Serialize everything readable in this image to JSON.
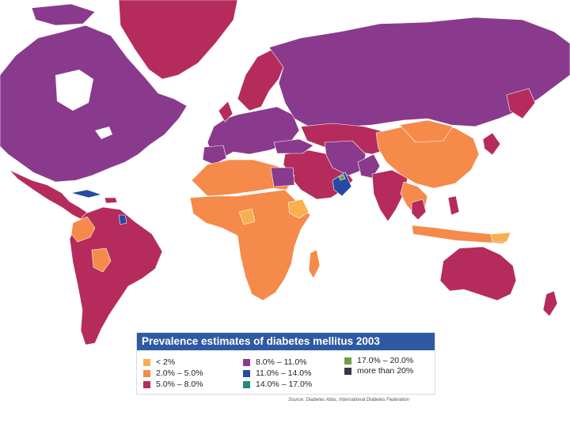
{
  "colors": {
    "lt2": "#f7b04d",
    "c2_5": "#f58a4b",
    "c5_8": "#b52c5c",
    "c8_11": "#8a3a8c",
    "c11_14": "#254aa4",
    "c14_17": "#218b7f",
    "c17_20": "#6f9e44",
    "gt20": "#333845",
    "title_bg": "#2f5aa3"
  },
  "legend": {
    "title": "Prevalence estimates of diabetes mellitus 2003",
    "items": [
      {
        "label": "< 2%",
        "color": "#f7b04d"
      },
      {
        "label": "2.0% – 5.0%",
        "color": "#f58a4b"
      },
      {
        "label": "5.0% – 8.0%",
        "color": "#b52c5c"
      },
      {
        "label": "8.0% – 11.0%",
        "color": "#8a3a8c"
      },
      {
        "label": "11.0% – 14.0%",
        "color": "#254aa4"
      },
      {
        "label": "14.0% – 17.0%",
        "color": "#218b7f"
      },
      {
        "label": "17.0% – 20.0%",
        "color": "#6f9e44"
      },
      {
        "label": "more than 20%",
        "color": "#333845"
      }
    ]
  },
  "source": "Source: Diabetes Atlas, International Diabetes Federation"
}
